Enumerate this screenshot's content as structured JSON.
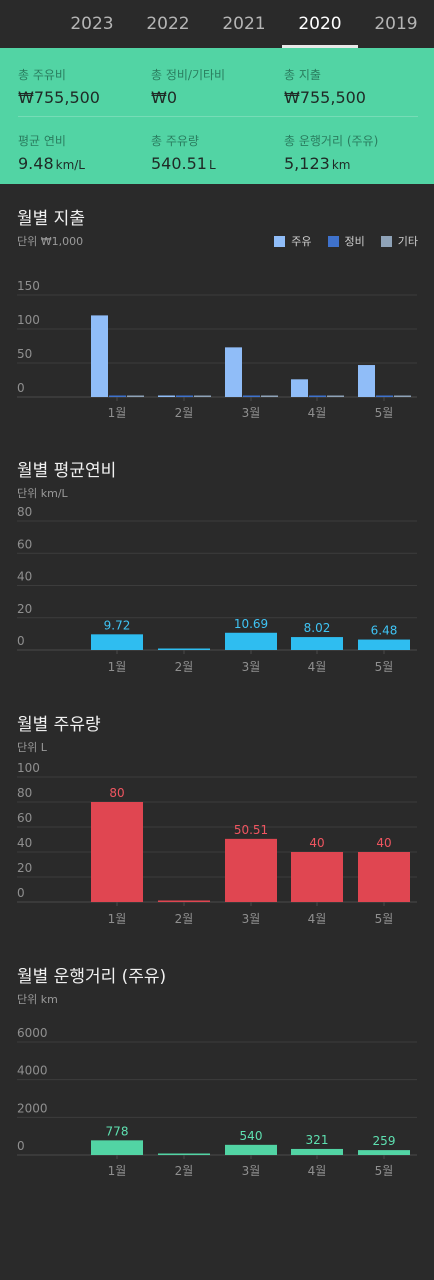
{
  "tabs": [
    "2023",
    "2022",
    "2021",
    "2020",
    "2019"
  ],
  "active_tab": "2020",
  "summary": {
    "total_fuel_cost": {
      "label": "총 주유비",
      "value": "₩755,500"
    },
    "total_maintenance": {
      "label": "총 정비/기타비",
      "value": "₩0"
    },
    "total_expense": {
      "label": "총 지출",
      "value": "₩755,500"
    },
    "avg_efficiency": {
      "label": "평균 연비",
      "value": "9.48",
      "unit": "km/L"
    },
    "total_fuel": {
      "label": "총 주유량",
      "value": "540.51",
      "unit": "L"
    },
    "total_distance": {
      "label": "총 운행거리 (주유)",
      "value": "5,123",
      "unit": "km"
    }
  },
  "charts": {
    "expense": {
      "title": "월별 지출",
      "unit": "단위 ₩1,000",
      "legend": [
        {
          "label": "주유",
          "color": "#90bdf8"
        },
        {
          "label": "정비",
          "color": "#3f72cc"
        },
        {
          "label": "기타",
          "color": "#8fa3b8"
        }
      ]
    },
    "efficiency": {
      "title": "월별 평균연비",
      "unit": "단위 km/L"
    },
    "fuel": {
      "title": "월별 주유량",
      "unit": "단위 L"
    },
    "distance": {
      "title": "월별 운행거리 (주유)",
      "unit": "단위 km"
    }
  },
  "chart_data": [
    {
      "type": "bar",
      "title": "월별 지출",
      "categories": [
        "1월",
        "2월",
        "3월",
        "4월",
        "5월"
      ],
      "series": [
        {
          "name": "주유",
          "values": [
            120,
            0,
            73,
            26,
            47
          ],
          "color": "#90bdf8"
        },
        {
          "name": "정비",
          "values": [
            0,
            0,
            0,
            0,
            0
          ],
          "color": "#3f72cc"
        },
        {
          "name": "기타",
          "values": [
            0,
            0,
            0,
            0,
            0
          ],
          "color": "#8fa3b8"
        }
      ],
      "yticks": [
        "150",
        "100",
        "50",
        "0"
      ],
      "ylim": [
        0,
        150
      ],
      "grid": true,
      "legend": "top-right"
    },
    {
      "type": "bar",
      "title": "월별 평균연비",
      "categories": [
        "1월",
        "2월",
        "3월",
        "4월",
        "5월"
      ],
      "values": [
        9.72,
        0,
        10.69,
        8.02,
        6.48
      ],
      "labels": [
        "9.72",
        "",
        "10.69",
        "8.02",
        "6.48"
      ],
      "color": "#2fbdf0",
      "label_color": "#3fc4f4",
      "yticks": [
        "80",
        "60",
        "40",
        "20",
        "0"
      ],
      "ylim": [
        0,
        80
      ],
      "grid": true
    },
    {
      "type": "bar",
      "title": "월별 주유량",
      "categories": [
        "1월",
        "2월",
        "3월",
        "4월",
        "5월"
      ],
      "values": [
        80,
        0,
        50.51,
        40,
        40
      ],
      "labels": [
        "80",
        "",
        "50.51",
        "40",
        "40"
      ],
      "color": "#e04651",
      "label_color": "#ef5560",
      "yticks": [
        "100",
        "80",
        "60",
        "40",
        "20",
        "0"
      ],
      "ylim": [
        0,
        100
      ],
      "grid": true
    },
    {
      "type": "bar",
      "title": "월별 운행거리 (주유)",
      "categories": [
        "1월",
        "2월",
        "3월",
        "4월",
        "5월"
      ],
      "values": [
        778,
        0,
        540,
        321,
        259
      ],
      "labels": [
        "778",
        "",
        "540",
        "321",
        "259"
      ],
      "color": "#52d4a4",
      "label_color": "#5ee0b0",
      "yticks": [
        "6000",
        "4000",
        "2000",
        "0"
      ],
      "ylim": [
        0,
        6000
      ],
      "grid": true
    }
  ]
}
